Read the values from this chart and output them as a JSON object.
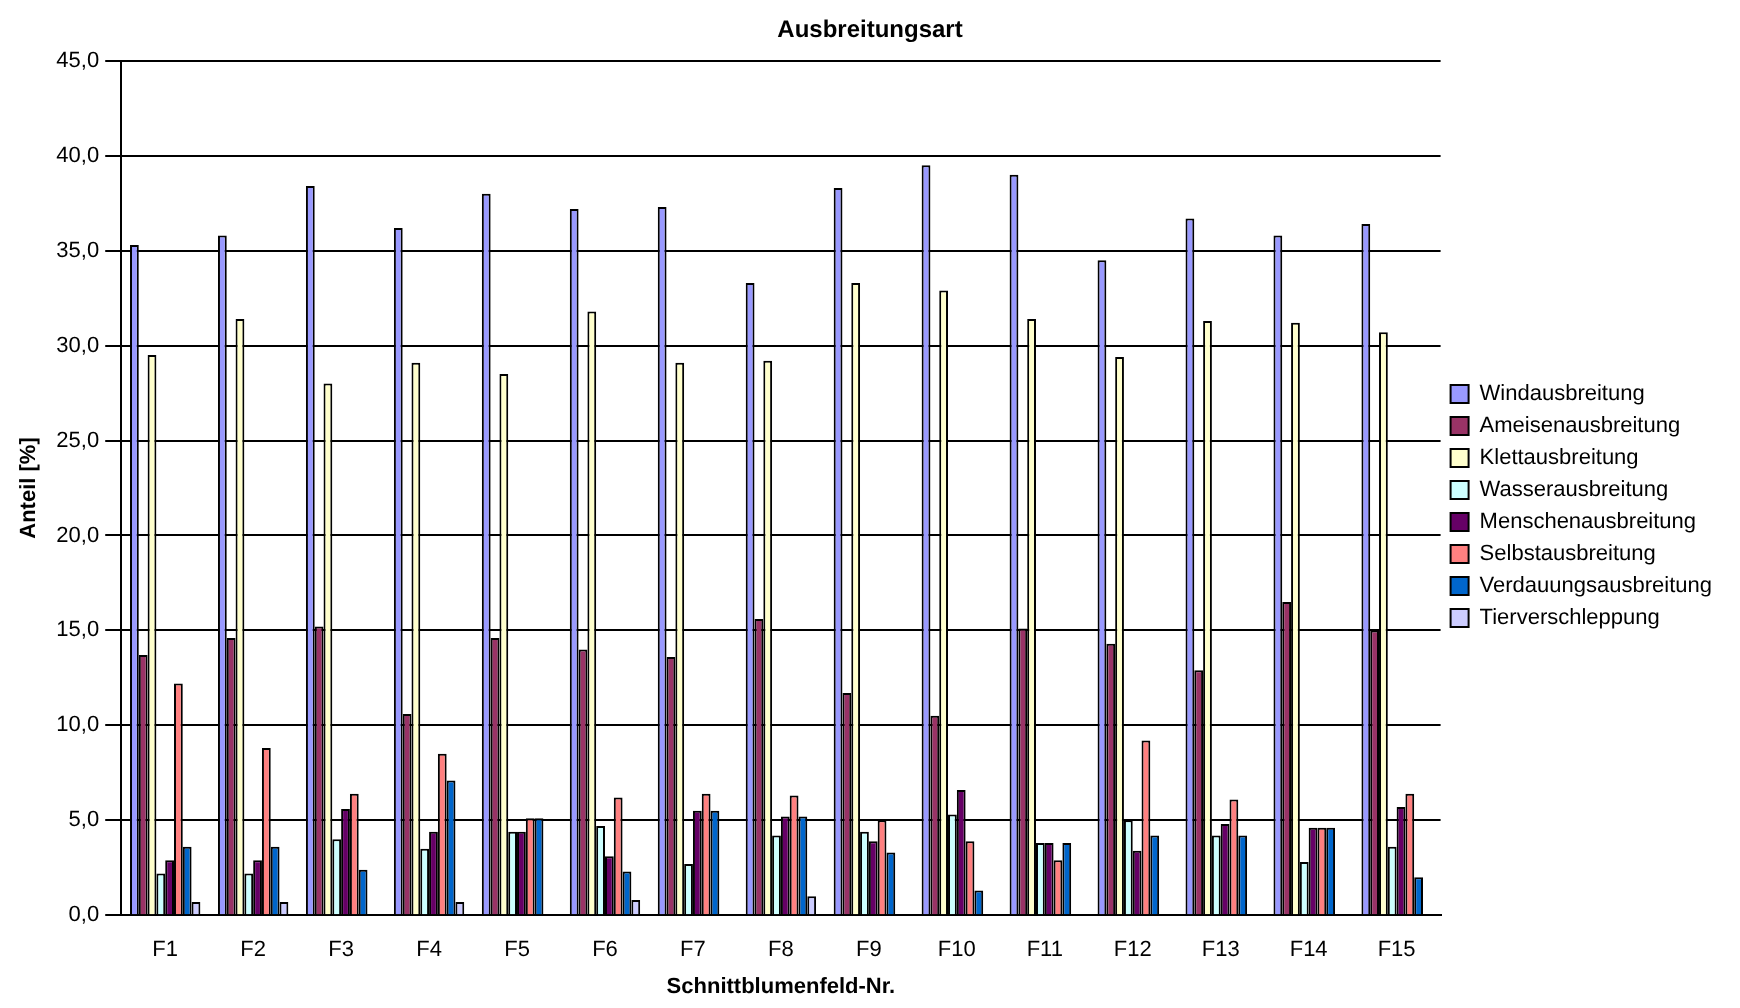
{
  "chart_data": {
    "type": "bar",
    "title": "Ausbreitungsart",
    "xlabel": "Schnittblumenfeld-Nr.",
    "ylabel": "Anteil [%]",
    "categories": [
      "F1",
      "F2",
      "F3",
      "F4",
      "F5",
      "F6",
      "F7",
      "F8",
      "F9",
      "F10",
      "F11",
      "F12",
      "F13",
      "F14",
      "F15"
    ],
    "ylim": [
      0,
      45
    ],
    "yticks": [
      {
        "value": 0,
        "label": "0,0"
      },
      {
        "value": 5,
        "label": "5,0"
      },
      {
        "value": 10,
        "label": "10,0"
      },
      {
        "value": 15,
        "label": "15,0"
      },
      {
        "value": 20,
        "label": "20,0"
      },
      {
        "value": 25,
        "label": "25,0"
      },
      {
        "value": 30,
        "label": "30,0"
      },
      {
        "value": 35,
        "label": "35,0"
      },
      {
        "value": 40,
        "label": "40,0"
      },
      {
        "value": 45,
        "label": "45,0"
      }
    ],
    "grid": "y",
    "legend": "right",
    "series": [
      {
        "name": "Windausbreitung",
        "color": "#9999ff",
        "values": [
          35.3,
          35.8,
          38.4,
          36.2,
          38.0,
          37.2,
          37.3,
          33.3,
          38.3,
          39.5,
          39.0,
          34.5,
          36.7,
          35.8,
          36.4
        ]
      },
      {
        "name": "Ameisenausbreitung",
        "color": "#993366",
        "values": [
          13.7,
          14.6,
          15.2,
          10.6,
          14.6,
          14.0,
          13.6,
          15.6,
          11.7,
          10.5,
          15.1,
          14.3,
          12.9,
          16.5,
          15.0
        ]
      },
      {
        "name": "Klettausbreitung",
        "color": "#ffffcc",
        "values": [
          29.5,
          31.4,
          28.0,
          29.1,
          28.5,
          31.8,
          29.1,
          29.2,
          33.3,
          32.9,
          31.4,
          29.4,
          31.3,
          31.2,
          30.7
        ]
      },
      {
        "name": "Wasserausbreitung",
        "color": "#ccffff",
        "values": [
          2.2,
          2.2,
          4.0,
          3.5,
          4.4,
          4.7,
          2.7,
          4.2,
          4.4,
          5.3,
          3.8,
          5.0,
          4.2,
          2.8,
          3.6
        ]
      },
      {
        "name": "Menschenausbreitung",
        "color": "#660066",
        "values": [
          2.9,
          2.9,
          5.6,
          4.4,
          4.4,
          3.1,
          5.5,
          5.2,
          3.9,
          6.6,
          3.8,
          3.4,
          4.8,
          4.6,
          5.7
        ]
      },
      {
        "name": "Selbstausbreitung",
        "color": "#ff8080",
        "values": [
          12.2,
          8.8,
          6.4,
          8.5,
          5.1,
          6.2,
          6.4,
          6.3,
          5.0,
          3.9,
          2.9,
          9.2,
          6.1,
          4.6,
          6.4
        ]
      },
      {
        "name": "Verdauungsausbreitung",
        "color": "#0066cc",
        "values": [
          3.6,
          3.6,
          2.4,
          7.1,
          5.1,
          2.3,
          5.5,
          5.2,
          3.3,
          1.3,
          3.8,
          4.2,
          4.2,
          4.6,
          2.0
        ]
      },
      {
        "name": "Tierverschleppung",
        "color": "#ccccff",
        "values": [
          0.7,
          0.7,
          0,
          0.7,
          0,
          0.8,
          0,
          1.0,
          0,
          0,
          0,
          0,
          0,
          0,
          0
        ]
      }
    ]
  }
}
